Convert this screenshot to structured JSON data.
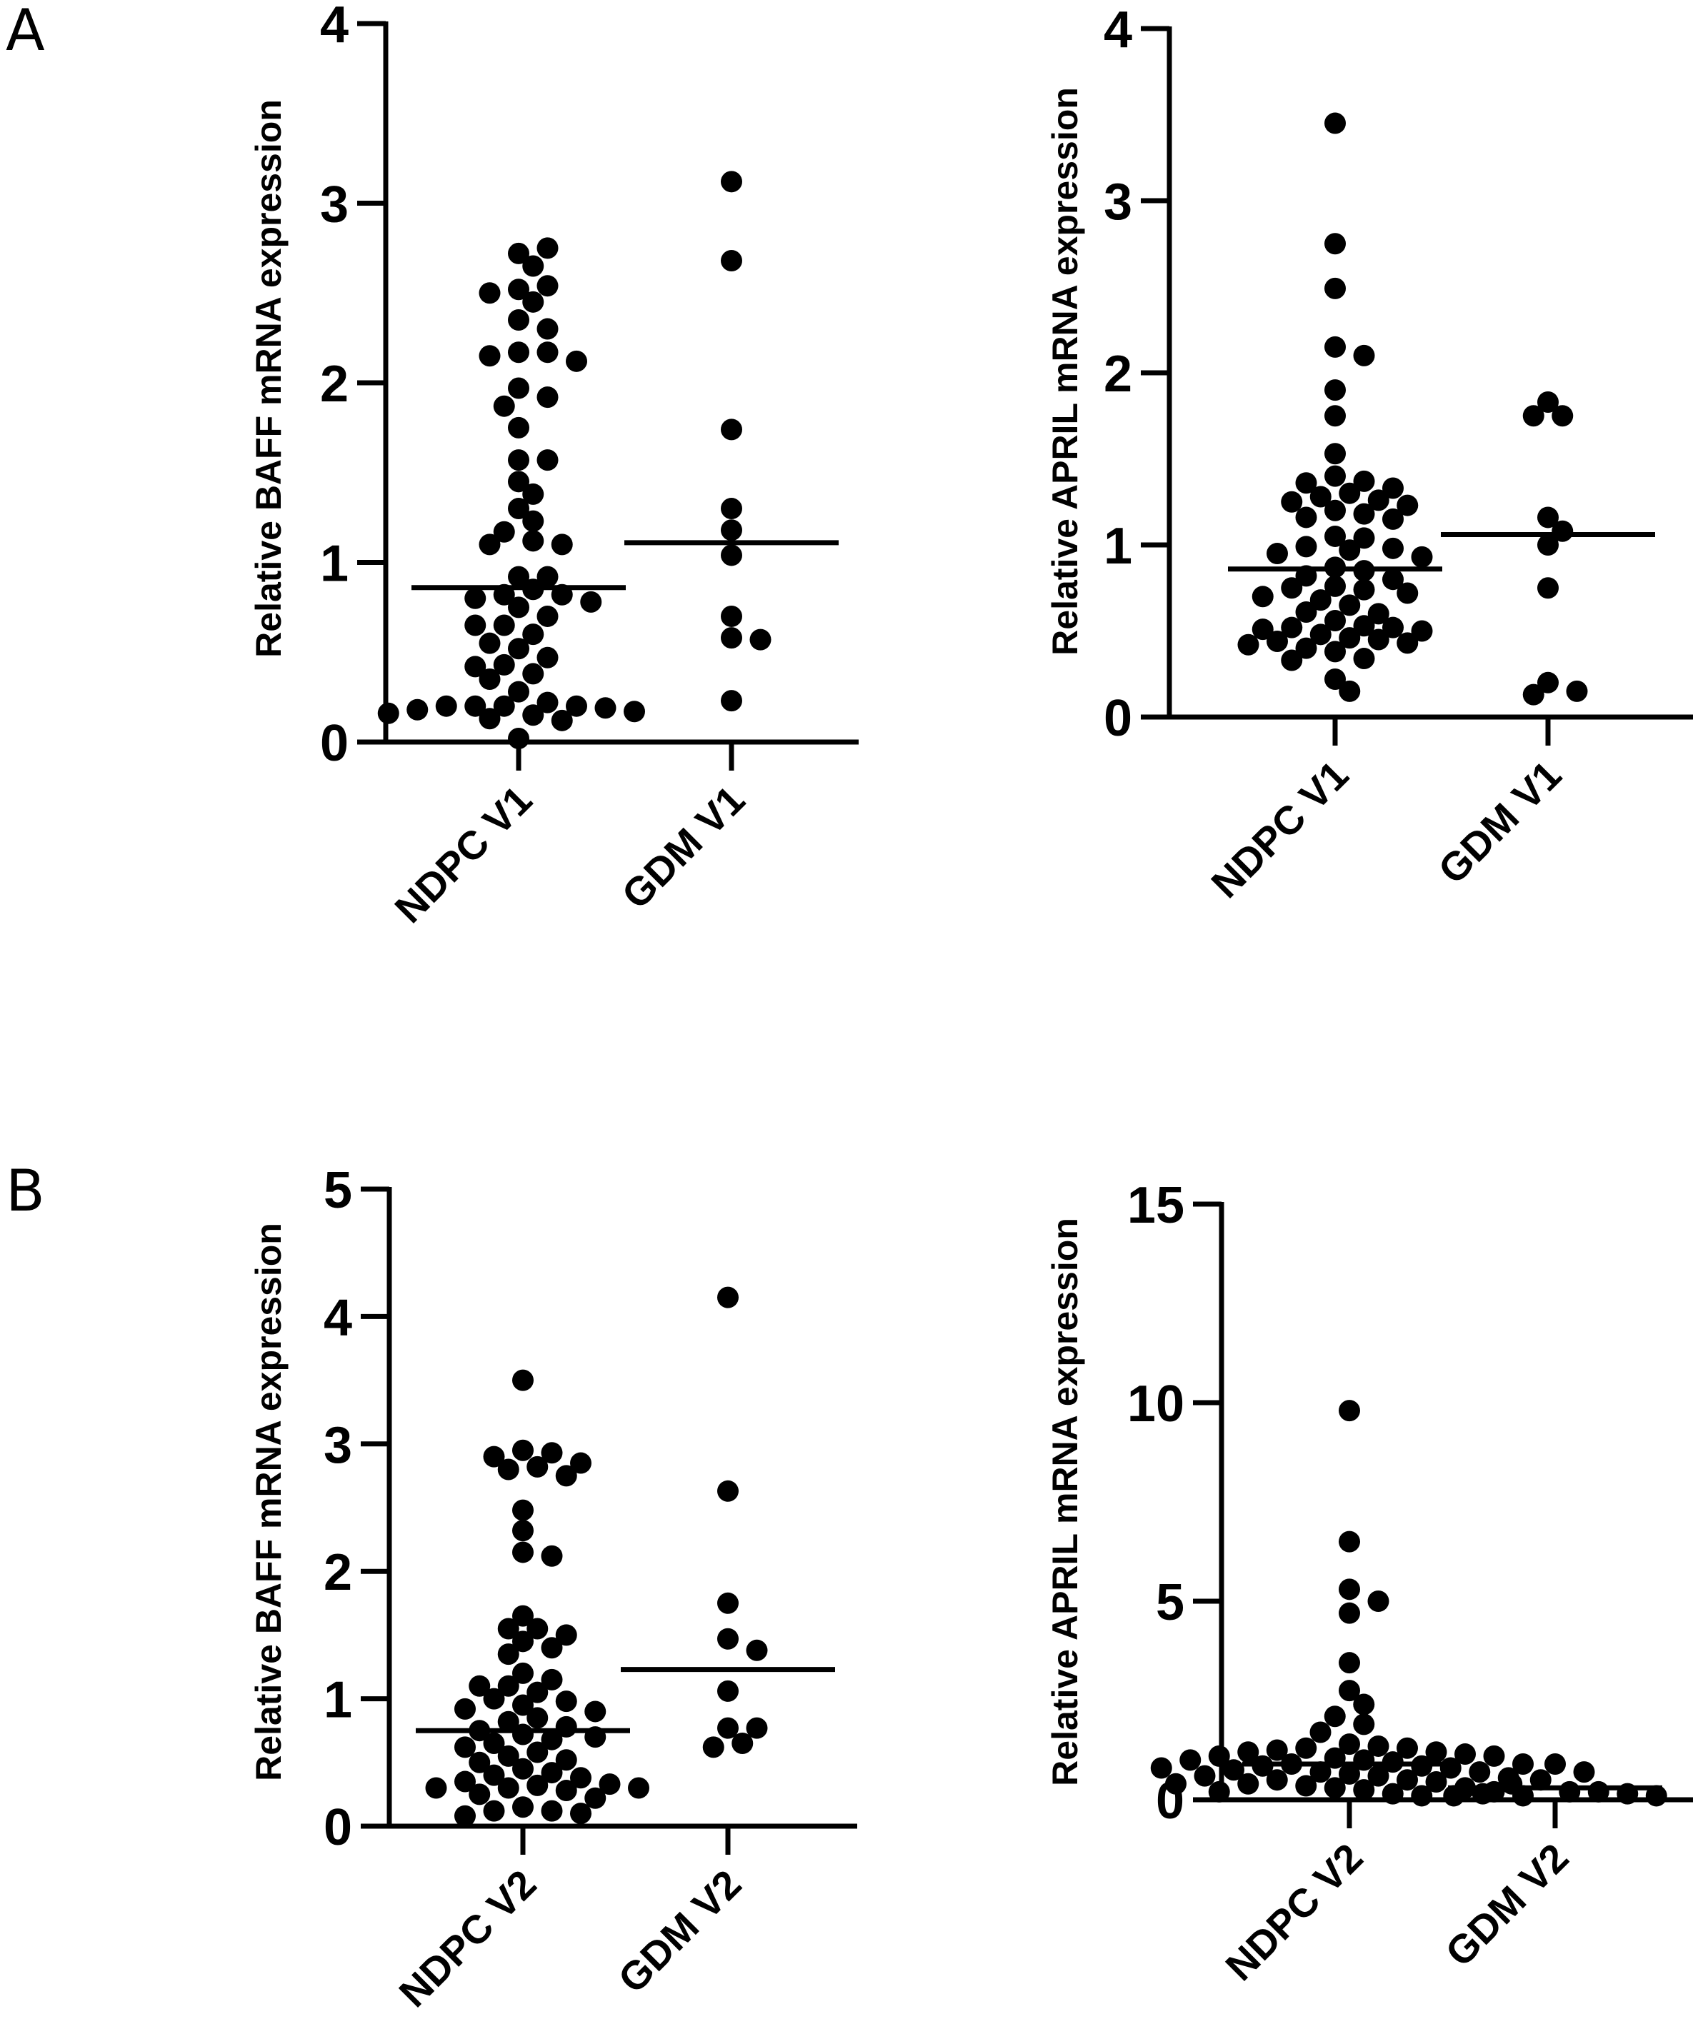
{
  "panel_labels": [
    "A",
    "B"
  ],
  "chart_data": [
    {
      "type": "scatter",
      "panel": "A",
      "ylabel": "Relative BAFF mRNA expression",
      "categories": [
        "NDPC V1",
        "GDM V1"
      ],
      "ylim": [
        0,
        4
      ],
      "yticks": [
        0,
        1,
        2,
        3,
        4
      ],
      "grid": false,
      "series": [
        {
          "values": [
            2.72,
            2.75,
            2.65,
            2.52,
            2.54,
            2.5,
            2.45,
            2.35,
            2.3,
            2.17,
            2.17,
            2.15,
            2.12,
            1.97,
            1.92,
            1.87,
            1.75,
            1.57,
            1.57,
            1.45,
            1.38,
            1.3,
            1.23,
            1.17,
            1.12,
            1.1,
            1.1,
            0.92,
            0.92,
            0.85,
            0.82,
            0.82,
            0.8,
            0.78,
            0.75,
            0.7,
            0.65,
            0.65,
            0.6,
            0.55,
            0.52,
            0.47,
            0.43,
            0.42,
            0.38,
            0.35,
            0.28,
            0.22,
            0.2,
            0.2,
            0.2,
            0.2,
            0.19,
            0.18,
            0.17,
            0.16,
            0.15,
            0.13,
            0.12,
            0.02
          ],
          "mean": 0.86
        },
        {
          "values": [
            3.12,
            2.68,
            1.74,
            1.3,
            1.18,
            1.04,
            0.7,
            0.58,
            0.57,
            0.23
          ],
          "mean": 1.11
        }
      ]
    },
    {
      "type": "scatter",
      "panel": "A",
      "ylabel": "Relative APRIL mRNA expression",
      "categories": [
        "NDPC V1",
        "GDM V1"
      ],
      "ylim": [
        0,
        4
      ],
      "yticks": [
        0,
        1,
        2,
        3,
        4
      ],
      "grid": false,
      "series": [
        {
          "values": [
            3.45,
            2.75,
            2.49,
            2.15,
            2.1,
            1.9,
            1.75,
            1.53,
            1.4,
            1.37,
            1.36,
            1.33,
            1.3,
            1.28,
            1.26,
            1.25,
            1.23,
            1.2,
            1.18,
            1.16,
            1.15,
            1.05,
            1.04,
            0.99,
            0.98,
            0.97,
            0.95,
            0.93,
            0.87,
            0.85,
            0.82,
            0.8,
            0.76,
            0.75,
            0.74,
            0.72,
            0.7,
            0.68,
            0.65,
            0.61,
            0.6,
            0.56,
            0.53,
            0.52,
            0.52,
            0.51,
            0.5,
            0.48,
            0.46,
            0.45,
            0.44,
            0.43,
            0.42,
            0.4,
            0.38,
            0.34,
            0.33,
            0.22,
            0.15
          ],
          "mean": 0.86
        },
        {
          "values": [
            1.83,
            1.75,
            1.75,
            1.16,
            1.08,
            1.0,
            0.75,
            0.2,
            0.15,
            0.13
          ],
          "mean": 1.06
        }
      ]
    },
    {
      "type": "scatter",
      "panel": "B",
      "ylabel": "Relative BAFF mRNA expression",
      "categories": [
        "NDPC V2",
        "GDM V2"
      ],
      "ylim": [
        0,
        5
      ],
      "yticks": [
        0,
        1,
        2,
        3,
        4,
        5
      ],
      "grid": false,
      "series": [
        {
          "values": [
            3.5,
            2.95,
            2.93,
            2.9,
            2.85,
            2.82,
            2.8,
            2.75,
            2.48,
            2.32,
            2.15,
            2.12,
            1.65,
            1.55,
            1.55,
            1.5,
            1.45,
            1.4,
            1.35,
            1.2,
            1.15,
            1.1,
            1.1,
            1.05,
            1.0,
            0.98,
            0.95,
            0.92,
            0.9,
            0.85,
            0.82,
            0.78,
            0.75,
            0.72,
            0.7,
            0.68,
            0.65,
            0.62,
            0.58,
            0.55,
            0.52,
            0.5,
            0.45,
            0.42,
            0.4,
            0.38,
            0.35,
            0.33,
            0.32,
            0.3,
            0.3,
            0.3,
            0.28,
            0.25,
            0.22,
            0.15,
            0.12,
            0.12,
            0.1,
            0.08
          ],
          "mean": 0.75
        },
        {
          "values": [
            4.15,
            2.63,
            1.75,
            1.47,
            1.38,
            1.06,
            0.77,
            0.77,
            0.65,
            0.62
          ],
          "mean": 1.23
        }
      ]
    },
    {
      "type": "scatter",
      "panel": "B",
      "ylabel": "Relative APRIL mRNA expression",
      "categories": [
        "NDPC V2",
        "GDM V2"
      ],
      "ylim": [
        0,
        15
      ],
      "yticks": [
        0,
        5,
        10,
        15
      ],
      "grid": false,
      "series": [
        {
          "values": [
            9.8,
            6.5,
            5.3,
            5.0,
            4.7,
            3.45,
            2.75,
            2.4,
            2.1,
            1.9,
            1.7,
            1.4,
            1.35,
            1.3,
            1.3,
            1.25,
            1.2,
            1.2,
            1.15,
            1.1,
            1.1,
            1.05,
            1.0,
            1.0,
            0.95,
            0.9,
            0.9,
            0.85,
            0.85,
            0.8,
            0.8,
            0.75,
            0.7,
            0.7,
            0.65,
            0.6,
            0.6,
            0.55,
            0.5,
            0.5,
            0.45,
            0.4,
            0.4,
            0.35,
            0.3,
            0.3,
            0.25,
            0.2,
            0.2,
            0.15,
            0.1,
            0.1
          ],
          "mean": 0.9
        },
        {
          "values": [
            0.9,
            0.7,
            0.5,
            0.4,
            0.2,
            0.2,
            0.15,
            0.15,
            0.1,
            0.1
          ],
          "mean": 0.3
        }
      ]
    }
  ]
}
